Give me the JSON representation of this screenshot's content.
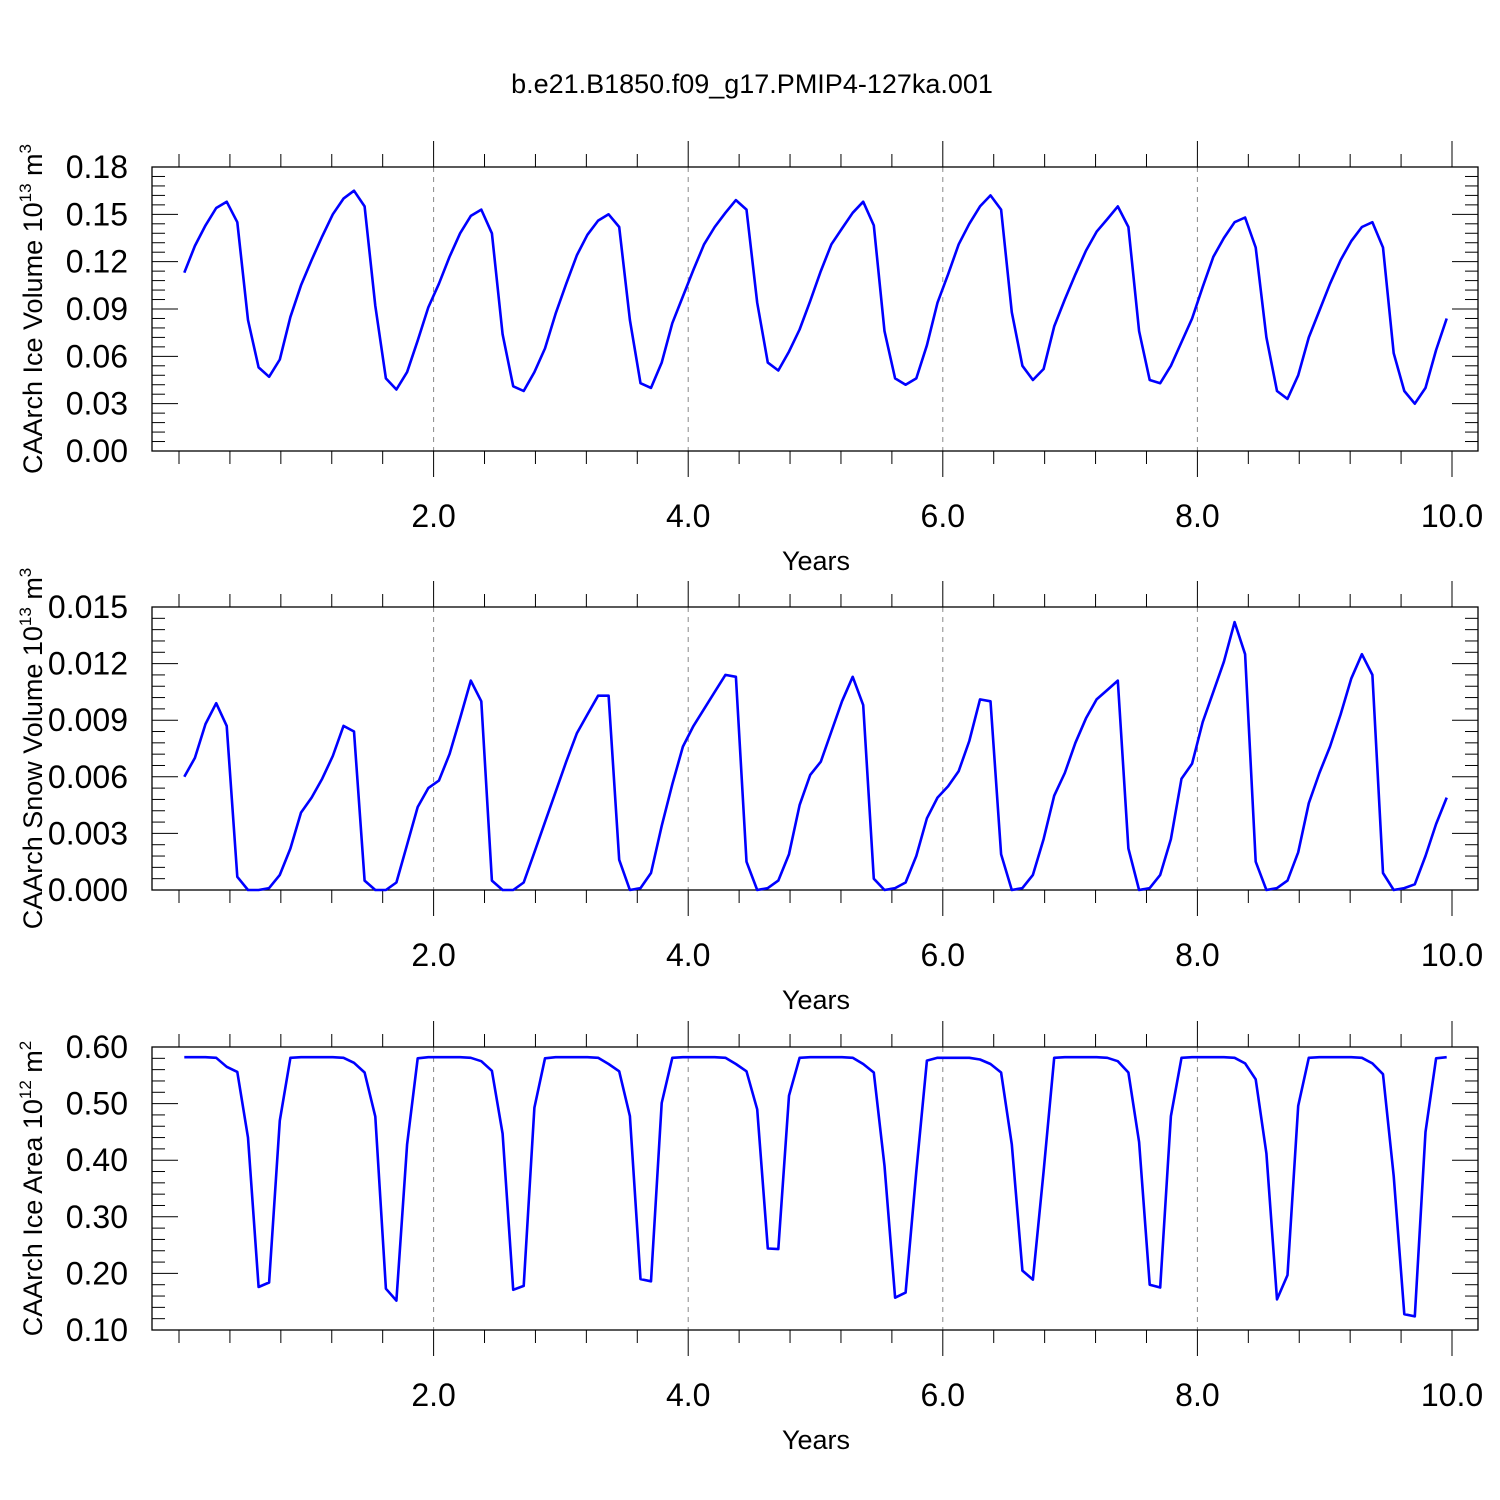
{
  "title": "b.e21.B1850.f09_g17.PMIP4-127ka.001",
  "colors": {
    "line": "#0000ff",
    "axis": "#000000",
    "grid": "#888888"
  },
  "chart_data": [
    {
      "type": "line",
      "ylabel": "CAArch Ice Volume 10",
      "ylabel_exp": "13",
      "ylabel_unit": " m",
      "ylabel_unit_exp": "3",
      "xlabel": "Years",
      "xlim": [
        0,
        10
      ],
      "ylim": [
        0,
        0.18
      ],
      "x_ticks": [
        2.0,
        4.0,
        6.0,
        8.0,
        10.0
      ],
      "x_tick_labels": [
        "2.0",
        "4.0",
        "6.0",
        "8.0",
        "10.0"
      ],
      "y_ticks": [
        0,
        0.03,
        0.06,
        0.09,
        0.12,
        0.15,
        0.18
      ],
      "y_tick_labels": [
        "0.00",
        "0.03",
        "0.06",
        "0.09",
        "0.12",
        "0.15",
        "0.18"
      ],
      "grid_x": true,
      "x": [
        0.042,
        0.125,
        0.208,
        0.292,
        0.375,
        0.458,
        0.542,
        0.625,
        0.708,
        0.792,
        0.875,
        0.958,
        1.042,
        1.125,
        1.208,
        1.292,
        1.375,
        1.458,
        1.542,
        1.625,
        1.708,
        1.792,
        1.875,
        1.958,
        2.042,
        2.125,
        2.208,
        2.292,
        2.375,
        2.458,
        2.542,
        2.625,
        2.708,
        2.792,
        2.875,
        2.958,
        3.042,
        3.125,
        3.208,
        3.292,
        3.375,
        3.458,
        3.542,
        3.625,
        3.708,
        3.792,
        3.875,
        3.958,
        4.042,
        4.125,
        4.208,
        4.292,
        4.375,
        4.458,
        4.542,
        4.625,
        4.708,
        4.792,
        4.875,
        4.958,
        5.042,
        5.125,
        5.208,
        5.292,
        5.375,
        5.458,
        5.542,
        5.625,
        5.708,
        5.792,
        5.875,
        5.958,
        6.042,
        6.125,
        6.208,
        6.292,
        6.375,
        6.458,
        6.542,
        6.625,
        6.708,
        6.792,
        6.875,
        6.958,
        7.042,
        7.125,
        7.208,
        7.292,
        7.375,
        7.458,
        7.542,
        7.625,
        7.708,
        7.792,
        7.875,
        7.958,
        8.042,
        8.125,
        8.208,
        8.292,
        8.375,
        8.458,
        8.542,
        8.625,
        8.708,
        8.792,
        8.875,
        8.958,
        9.042,
        9.125,
        9.208,
        9.292,
        9.375,
        9.458,
        9.542,
        9.625,
        9.708,
        9.792,
        9.875,
        9.958
      ],
      "values": [
        0.113,
        0.13,
        0.143,
        0.154,
        0.158,
        0.145,
        0.083,
        0.053,
        0.047,
        0.058,
        0.085,
        0.105,
        0.121,
        0.136,
        0.15,
        0.16,
        0.165,
        0.155,
        0.092,
        0.046,
        0.039,
        0.05,
        0.07,
        0.091,
        0.106,
        0.123,
        0.138,
        0.149,
        0.153,
        0.138,
        0.074,
        0.041,
        0.038,
        0.05,
        0.065,
        0.087,
        0.106,
        0.124,
        0.137,
        0.146,
        0.15,
        0.142,
        0.083,
        0.043,
        0.04,
        0.056,
        0.081,
        0.098,
        0.115,
        0.131,
        0.142,
        0.151,
        0.159,
        0.153,
        0.094,
        0.056,
        0.051,
        0.063,
        0.077,
        0.095,
        0.114,
        0.131,
        0.141,
        0.151,
        0.158,
        0.143,
        0.076,
        0.046,
        0.042,
        0.046,
        0.067,
        0.094,
        0.112,
        0.131,
        0.144,
        0.155,
        0.162,
        0.153,
        0.088,
        0.054,
        0.045,
        0.052,
        0.079,
        0.096,
        0.112,
        0.127,
        0.139,
        0.147,
        0.155,
        0.142,
        0.076,
        0.045,
        0.043,
        0.054,
        0.069,
        0.084,
        0.104,
        0.123,
        0.135,
        0.145,
        0.148,
        0.129,
        0.072,
        0.038,
        0.033,
        0.048,
        0.072,
        0.089,
        0.106,
        0.121,
        0.133,
        0.142,
        0.145,
        0.129,
        0.062,
        0.038,
        0.03,
        0.04,
        0.064,
        0.084
      ]
    },
    {
      "type": "line",
      "ylabel": "CAArch Snow Volume 10",
      "ylabel_exp": "13",
      "ylabel_unit": " m",
      "ylabel_unit_exp": "3",
      "xlabel": "Years",
      "xlim": [
        0,
        10
      ],
      "ylim": [
        0,
        0.015
      ],
      "x_ticks": [
        2.0,
        4.0,
        6.0,
        8.0,
        10.0
      ],
      "x_tick_labels": [
        "2.0",
        "4.0",
        "6.0",
        "8.0",
        "10.0"
      ],
      "y_ticks": [
        0,
        0.003,
        0.006,
        0.009,
        0.012,
        0.015
      ],
      "y_tick_labels": [
        "0.000",
        "0.003",
        "0.006",
        "0.009",
        "0.012",
        "0.015"
      ],
      "grid_x": true,
      "x": [
        0.042,
        0.125,
        0.208,
        0.292,
        0.375,
        0.458,
        0.542,
        0.625,
        0.708,
        0.792,
        0.875,
        0.958,
        1.042,
        1.125,
        1.208,
        1.292,
        1.375,
        1.458,
        1.542,
        1.625,
        1.708,
        1.792,
        1.875,
        1.958,
        2.042,
        2.125,
        2.208,
        2.292,
        2.375,
        2.458,
        2.542,
        2.625,
        2.708,
        2.792,
        2.875,
        2.958,
        3.042,
        3.125,
        3.208,
        3.292,
        3.375,
        3.458,
        3.542,
        3.625,
        3.708,
        3.792,
        3.875,
        3.958,
        4.042,
        4.125,
        4.208,
        4.292,
        4.375,
        4.458,
        4.542,
        4.625,
        4.708,
        4.792,
        4.875,
        4.958,
        5.042,
        5.125,
        5.208,
        5.292,
        5.375,
        5.458,
        5.542,
        5.625,
        5.708,
        5.792,
        5.875,
        5.958,
        6.042,
        6.125,
        6.208,
        6.292,
        6.375,
        6.458,
        6.542,
        6.625,
        6.708,
        6.792,
        6.875,
        6.958,
        7.042,
        7.125,
        7.208,
        7.292,
        7.375,
        7.458,
        7.542,
        7.625,
        7.708,
        7.792,
        7.875,
        7.958,
        8.042,
        8.125,
        8.208,
        8.292,
        8.375,
        8.458,
        8.542,
        8.625,
        8.708,
        8.792,
        8.875,
        8.958,
        9.042,
        9.125,
        9.208,
        9.292,
        9.375,
        9.458,
        9.542,
        9.625,
        9.708,
        9.792,
        9.875,
        9.958
      ],
      "values": [
        0.006,
        0.007,
        0.0088,
        0.0099,
        0.0087,
        0.0007,
        0.0,
        0.0,
        0.0001,
        0.0008,
        0.0022,
        0.0041,
        0.0049,
        0.0059,
        0.0071,
        0.0087,
        0.0084,
        0.0005,
        0.0,
        0.0,
        0.0004,
        0.0024,
        0.0044,
        0.0054,
        0.0058,
        0.0072,
        0.0091,
        0.0111,
        0.01,
        0.0005,
        0.0,
        0.0,
        0.0004,
        0.002,
        0.0036,
        0.0052,
        0.0068,
        0.0083,
        0.0093,
        0.0103,
        0.0103,
        0.0016,
        0.0,
        0.0001,
        0.0009,
        0.0034,
        0.0056,
        0.0076,
        0.0087,
        0.0096,
        0.0105,
        0.0114,
        0.0113,
        0.0015,
        0.0,
        0.0001,
        0.0005,
        0.0019,
        0.0045,
        0.0061,
        0.0068,
        0.0084,
        0.01,
        0.0113,
        0.0098,
        0.0006,
        0.0,
        0.0001,
        0.0004,
        0.0018,
        0.0038,
        0.0049,
        0.0055,
        0.0063,
        0.0079,
        0.0101,
        0.01,
        0.0019,
        0.0,
        0.0001,
        0.0008,
        0.0027,
        0.005,
        0.0062,
        0.0078,
        0.0091,
        0.0101,
        0.0106,
        0.0111,
        0.0022,
        0.0,
        0.0001,
        0.0008,
        0.0027,
        0.0059,
        0.0067,
        0.0089,
        0.0105,
        0.0121,
        0.0142,
        0.0125,
        0.0015,
        0.0,
        0.0001,
        0.0005,
        0.002,
        0.0046,
        0.0062,
        0.0076,
        0.0093,
        0.0112,
        0.0125,
        0.0114,
        0.0009,
        0.0,
        0.0001,
        0.0003,
        0.0018,
        0.0035,
        0.0049
      ]
    },
    {
      "type": "line",
      "ylabel": "CAArch Ice Area 10",
      "ylabel_exp": "12",
      "ylabel_unit": " m",
      "ylabel_unit_exp": "2",
      "xlabel": "Years",
      "xlim": [
        0,
        10
      ],
      "ylim": [
        0.1,
        0.6
      ],
      "x_ticks": [
        2.0,
        4.0,
        6.0,
        8.0,
        10.0
      ],
      "x_tick_labels": [
        "2.0",
        "4.0",
        "6.0",
        "8.0",
        "10.0"
      ],
      "y_ticks": [
        0.1,
        0.2,
        0.3,
        0.4,
        0.5,
        0.6
      ],
      "y_tick_labels": [
        "0.10",
        "0.20",
        "0.30",
        "0.40",
        "0.50",
        "0.60"
      ],
      "grid_x": true,
      "x": [
        0.042,
        0.125,
        0.208,
        0.292,
        0.375,
        0.458,
        0.542,
        0.625,
        0.708,
        0.792,
        0.875,
        0.958,
        1.042,
        1.125,
        1.208,
        1.292,
        1.375,
        1.458,
        1.542,
        1.625,
        1.708,
        1.792,
        1.875,
        1.958,
        2.042,
        2.125,
        2.208,
        2.292,
        2.375,
        2.458,
        2.542,
        2.625,
        2.708,
        2.792,
        2.875,
        2.958,
        3.042,
        3.125,
        3.208,
        3.292,
        3.375,
        3.458,
        3.542,
        3.625,
        3.708,
        3.792,
        3.875,
        3.958,
        4.042,
        4.125,
        4.208,
        4.292,
        4.375,
        4.458,
        4.542,
        4.625,
        4.708,
        4.792,
        4.875,
        4.958,
        5.042,
        5.125,
        5.208,
        5.292,
        5.375,
        5.458,
        5.542,
        5.625,
        5.708,
        5.792,
        5.875,
        5.958,
        6.042,
        6.125,
        6.208,
        6.292,
        6.375,
        6.458,
        6.542,
        6.625,
        6.708,
        6.792,
        6.875,
        6.958,
        7.042,
        7.125,
        7.208,
        7.292,
        7.375,
        7.458,
        7.542,
        7.625,
        7.708,
        7.792,
        7.875,
        7.958,
        8.042,
        8.125,
        8.208,
        8.292,
        8.375,
        8.458,
        8.542,
        8.625,
        8.708,
        8.792,
        8.875,
        8.958,
        9.042,
        9.125,
        9.208,
        9.292,
        9.375,
        9.458,
        9.542,
        9.625,
        9.708,
        9.792,
        9.875,
        9.958
      ],
      "values": [
        0.582,
        0.582,
        0.582,
        0.581,
        0.565,
        0.556,
        0.44,
        0.176,
        0.184,
        0.47,
        0.581,
        0.582,
        0.582,
        0.582,
        0.582,
        0.581,
        0.572,
        0.555,
        0.477,
        0.173,
        0.152,
        0.428,
        0.58,
        0.582,
        0.582,
        0.582,
        0.582,
        0.581,
        0.575,
        0.558,
        0.447,
        0.171,
        0.178,
        0.493,
        0.58,
        0.582,
        0.582,
        0.582,
        0.582,
        0.581,
        0.57,
        0.557,
        0.478,
        0.19,
        0.186,
        0.501,
        0.581,
        0.582,
        0.582,
        0.582,
        0.582,
        0.581,
        0.57,
        0.557,
        0.49,
        0.244,
        0.243,
        0.514,
        0.581,
        0.582,
        0.582,
        0.582,
        0.582,
        0.581,
        0.57,
        0.555,
        0.39,
        0.157,
        0.166,
        0.38,
        0.576,
        0.581,
        0.581,
        0.581,
        0.581,
        0.578,
        0.57,
        0.555,
        0.428,
        0.205,
        0.189,
        0.38,
        0.581,
        0.582,
        0.582,
        0.582,
        0.582,
        0.581,
        0.575,
        0.555,
        0.432,
        0.18,
        0.175,
        0.478,
        0.581,
        0.582,
        0.582,
        0.582,
        0.582,
        0.581,
        0.571,
        0.543,
        0.412,
        0.154,
        0.197,
        0.496,
        0.581,
        0.582,
        0.582,
        0.582,
        0.582,
        0.581,
        0.571,
        0.552,
        0.372,
        0.128,
        0.124,
        0.45,
        0.58,
        0.582
      ]
    }
  ]
}
